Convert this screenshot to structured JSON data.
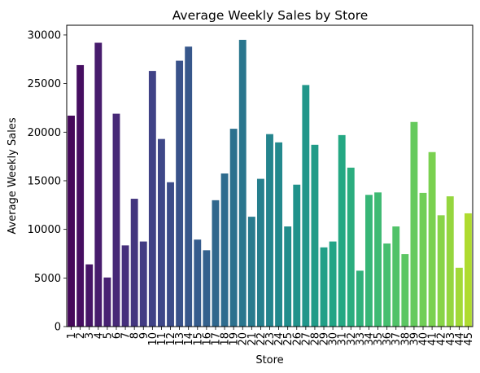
{
  "chart_data": {
    "type": "bar",
    "title": "Average Weekly Sales by Store",
    "xlabel": "Store",
    "ylabel": "Average Weekly Sales",
    "ylim": [
      0,
      31000
    ],
    "yticks": [
      0,
      5000,
      10000,
      15000,
      20000,
      25000,
      30000
    ],
    "grid": false,
    "legend": "none",
    "colormap": "viridis",
    "categories": [
      "1",
      "2",
      "3",
      "4",
      "5",
      "6",
      "7",
      "8",
      "9",
      "10",
      "11",
      "12",
      "13",
      "14",
      "15",
      "16",
      "17",
      "18",
      "19",
      "20",
      "21",
      "22",
      "23",
      "24",
      "25",
      "26",
      "27",
      "28",
      "29",
      "30",
      "31",
      "32",
      "33",
      "34",
      "35",
      "36",
      "37",
      "38",
      "39",
      "40",
      "41",
      "42",
      "43",
      "44",
      "45"
    ],
    "values": [
      21700,
      26900,
      6400,
      29200,
      5050,
      21900,
      8350,
      13150,
      8750,
      26300,
      19300,
      14850,
      27350,
      28800,
      8950,
      7850,
      13000,
      15750,
      20350,
      29500,
      11300,
      15200,
      19800,
      18950,
      10300,
      14600,
      24850,
      18700,
      8150,
      8750,
      19700,
      16350,
      5750,
      13550,
      13800,
      8550,
      10300,
      7450,
      21050,
      13750,
      17950,
      11450,
      13400,
      6050,
      11650
    ]
  }
}
